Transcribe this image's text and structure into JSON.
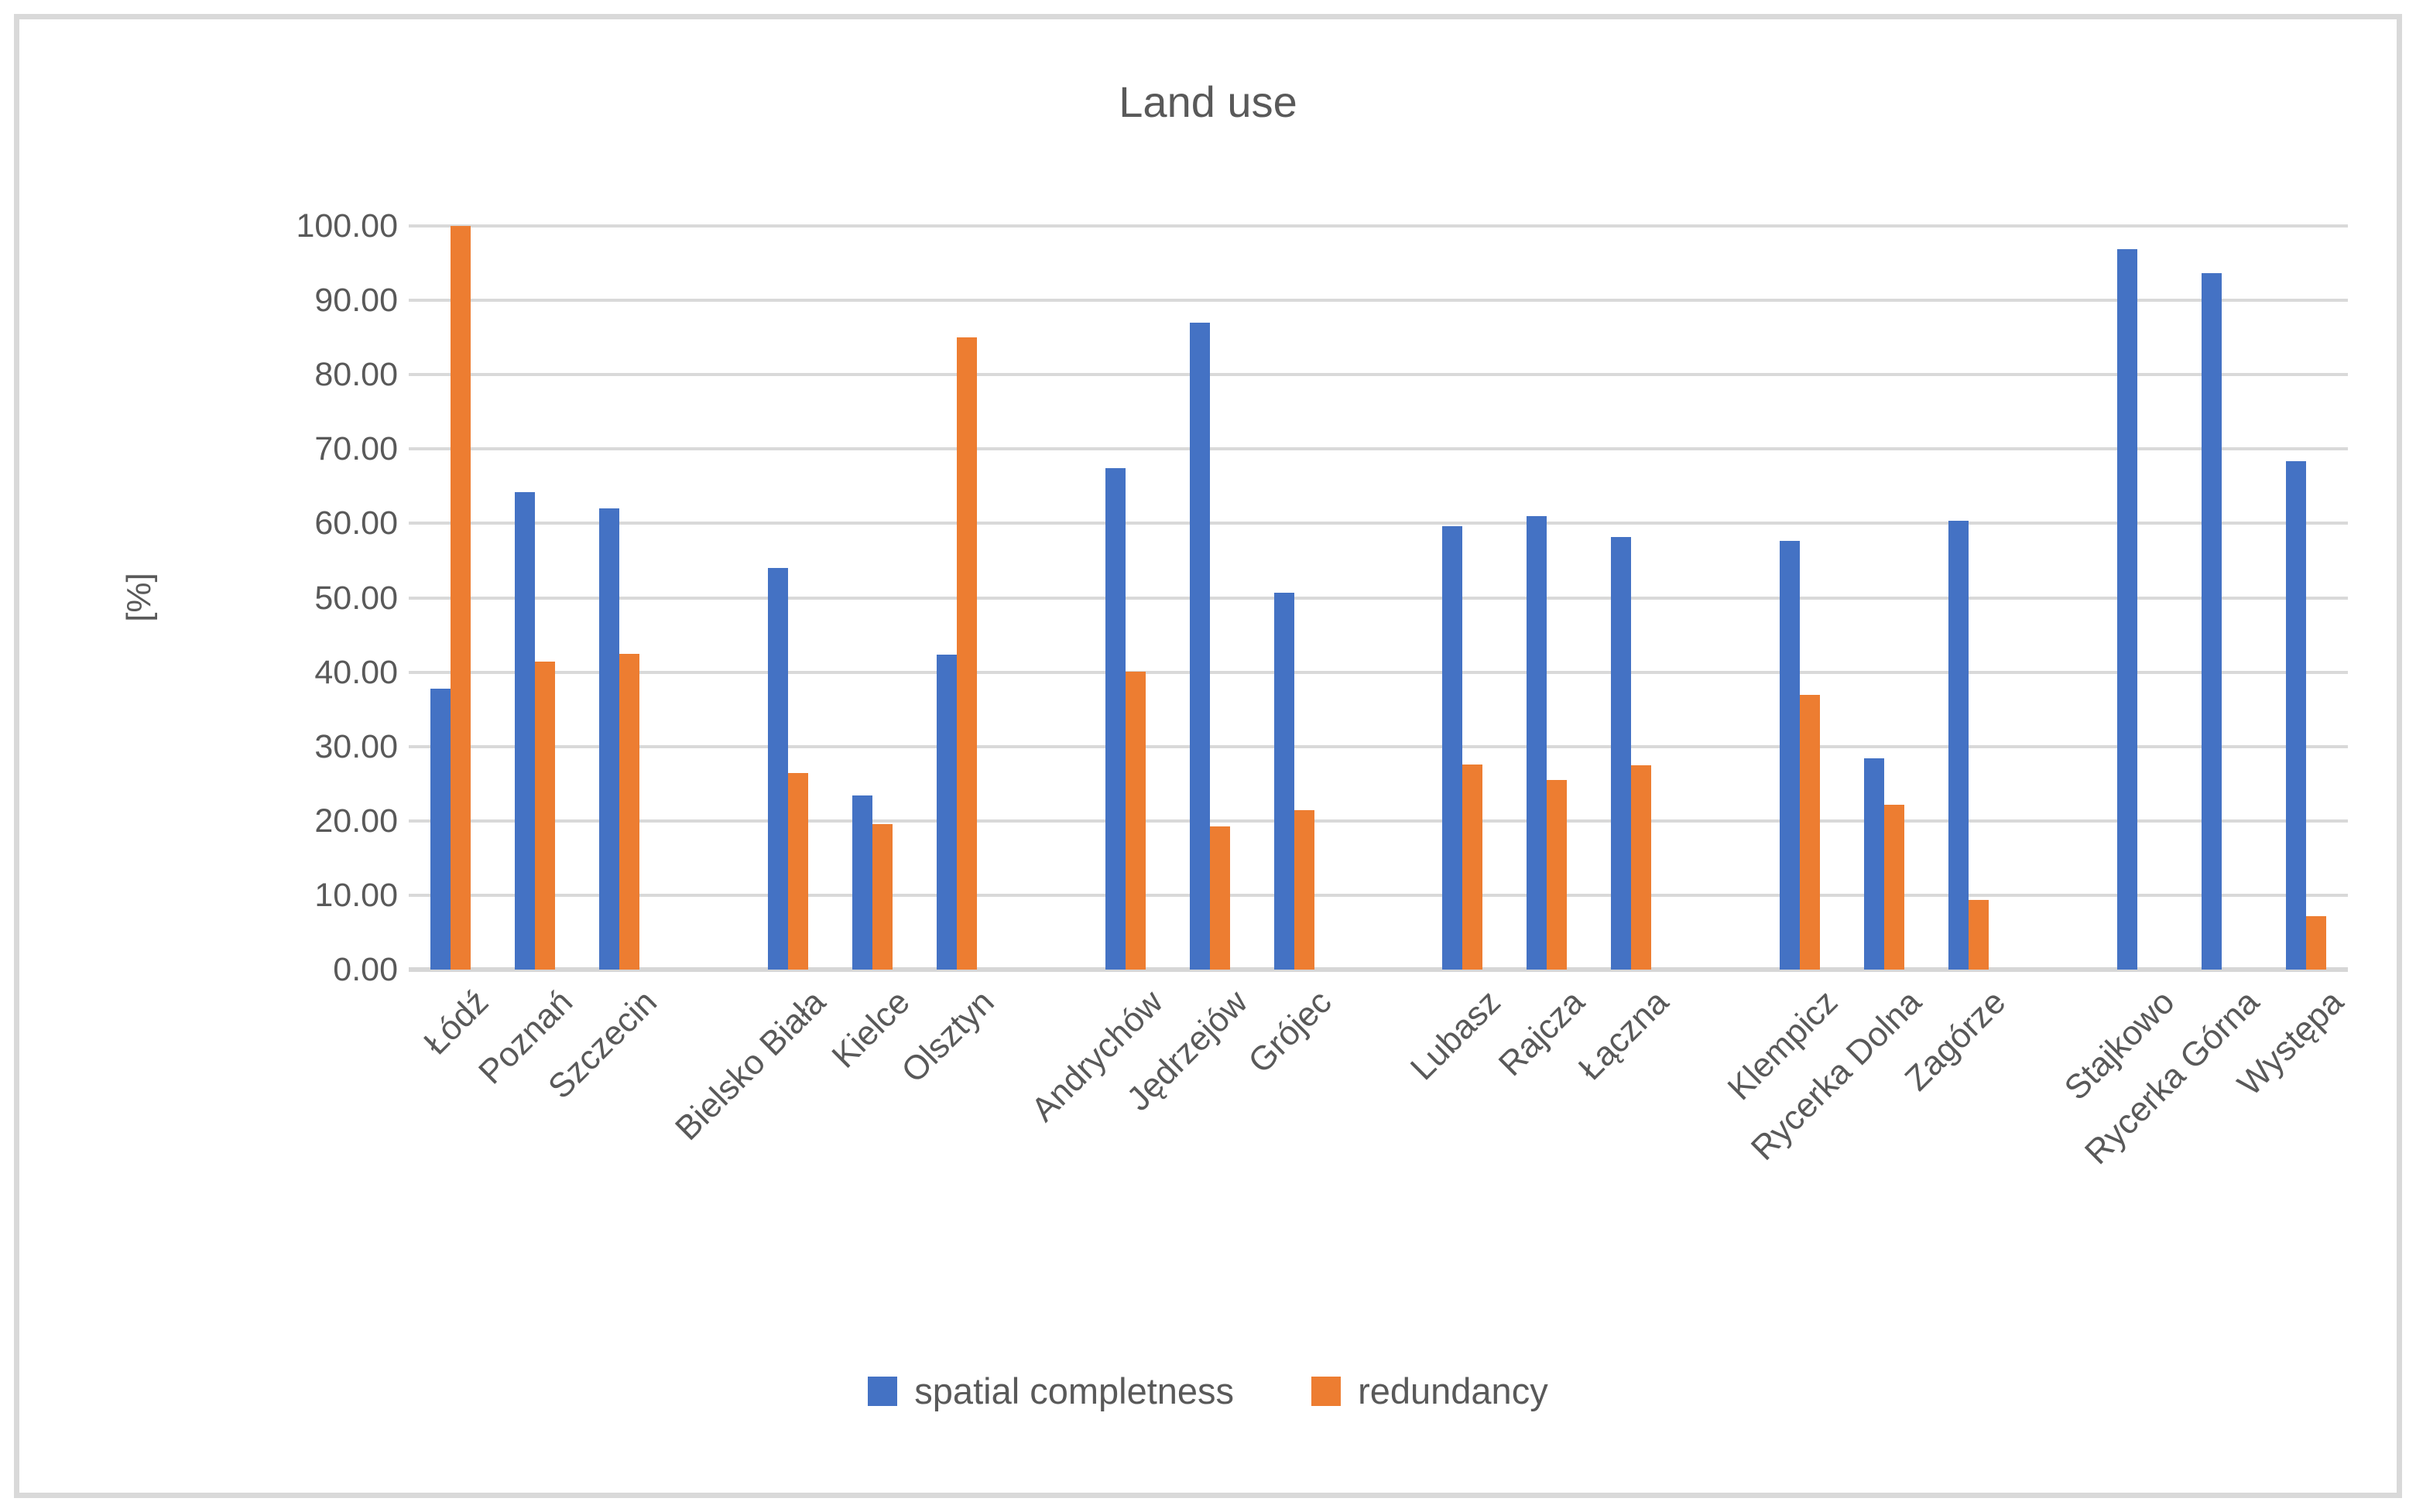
{
  "title": "Land use",
  "y_axis": {
    "label": "[%]",
    "ticks": [
      "0.00",
      "10.00",
      "20.00",
      "30.00",
      "40.00",
      "50.00",
      "60.00",
      "70.00",
      "80.00",
      "90.00",
      "100.00"
    ]
  },
  "legend": {
    "items": [
      {
        "label": "spatial completness",
        "color": "#4472C4"
      },
      {
        "label": "redundancy",
        "color": "#ED7D31"
      }
    ]
  },
  "chart_data": {
    "type": "bar",
    "title": "Land use",
    "xlabel": "",
    "ylabel": "[%]",
    "ylim": [
      0,
      100
    ],
    "grid": true,
    "legend_position": "bottom",
    "group_size": 3,
    "categories": [
      "Łódź",
      "Poznań",
      "Szczecin",
      "Bielsko Biała",
      "Kielce",
      "Olsztyn",
      "Andrychów",
      "Jędrzejów",
      "Grójec",
      "Lubasz",
      "Rajcza",
      "Łączna",
      "Klempicz",
      "Rycerka Dolna",
      "Zagórze",
      "Stajkowo",
      "Rycerka Górna",
      "Występa"
    ],
    "series": [
      {
        "name": "spatial completness",
        "color": "#4472C4",
        "values": [
          37.8,
          64.2,
          62.0,
          54.0,
          23.4,
          42.4,
          67.4,
          87.0,
          50.7,
          59.6,
          61.0,
          58.2,
          57.6,
          28.4,
          60.4,
          96.9,
          93.7,
          68.4
        ]
      },
      {
        "name": "redundancy",
        "color": "#ED7D31",
        "values": [
          100.0,
          41.4,
          42.5,
          26.4,
          19.6,
          85.0,
          40.1,
          19.2,
          21.4,
          27.6,
          25.5,
          27.5,
          36.9,
          22.2,
          9.4,
          0.0,
          0.0,
          7.2
        ]
      }
    ],
    "colors": {
      "gridline": "#d9d9d9",
      "axis_line": "#d6d6d6",
      "text": "#595959",
      "frame_border": "#d9d9d9"
    }
  }
}
